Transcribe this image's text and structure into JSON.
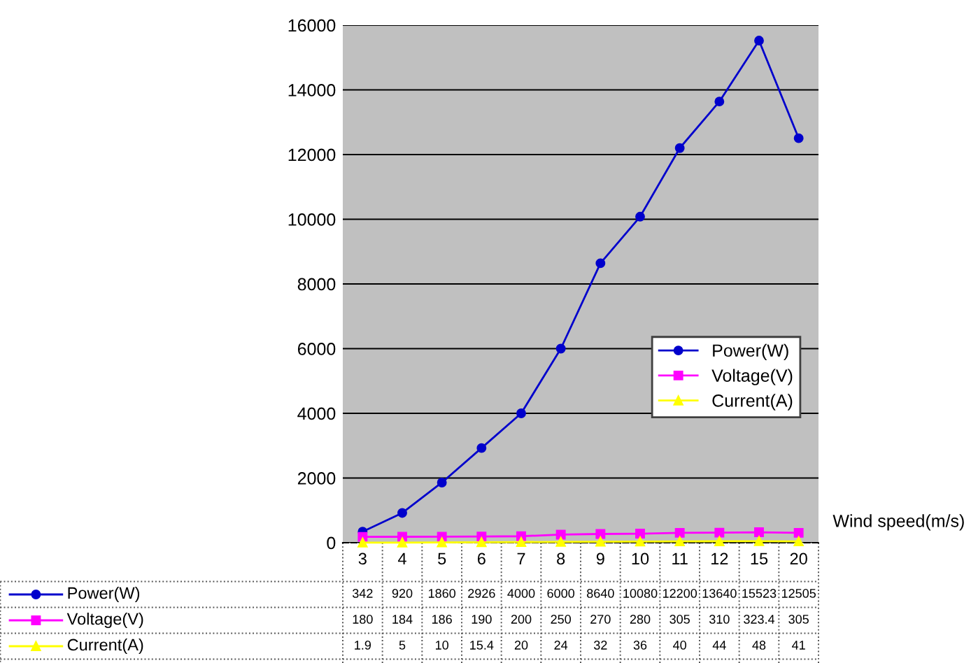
{
  "chart_data": {
    "type": "line",
    "xlabel": "Wind speed(m/s)",
    "categories": [
      "3",
      "4",
      "5",
      "6",
      "7",
      "8",
      "9",
      "10",
      "11",
      "12",
      "15",
      "20"
    ],
    "series": [
      {
        "name": "Power(W)",
        "color": "#0000cc",
        "marker": "circle",
        "values": [
          342,
          920,
          1860,
          2926,
          4000,
          6000,
          8640,
          10080,
          12200,
          13640,
          15523,
          12505
        ]
      },
      {
        "name": "Voltage(V)",
        "color": "#ff00ff",
        "marker": "square",
        "values": [
          180,
          184,
          186,
          190,
          200,
          250,
          270,
          280,
          305,
          310,
          323.4,
          305
        ]
      },
      {
        "name": "Current(A)",
        "color": "#ffff00",
        "marker": "triangle",
        "values": [
          1.9,
          5,
          10,
          15.4,
          20,
          24,
          32,
          36,
          40,
          44,
          48,
          41
        ]
      }
    ],
    "ylim": [
      0,
      16000
    ],
    "yticks": [
      0,
      2000,
      4000,
      6000,
      8000,
      10000,
      12000,
      14000,
      16000
    ],
    "grid": "y",
    "legend": "right",
    "data_labels": true,
    "line_style": "solid"
  }
}
